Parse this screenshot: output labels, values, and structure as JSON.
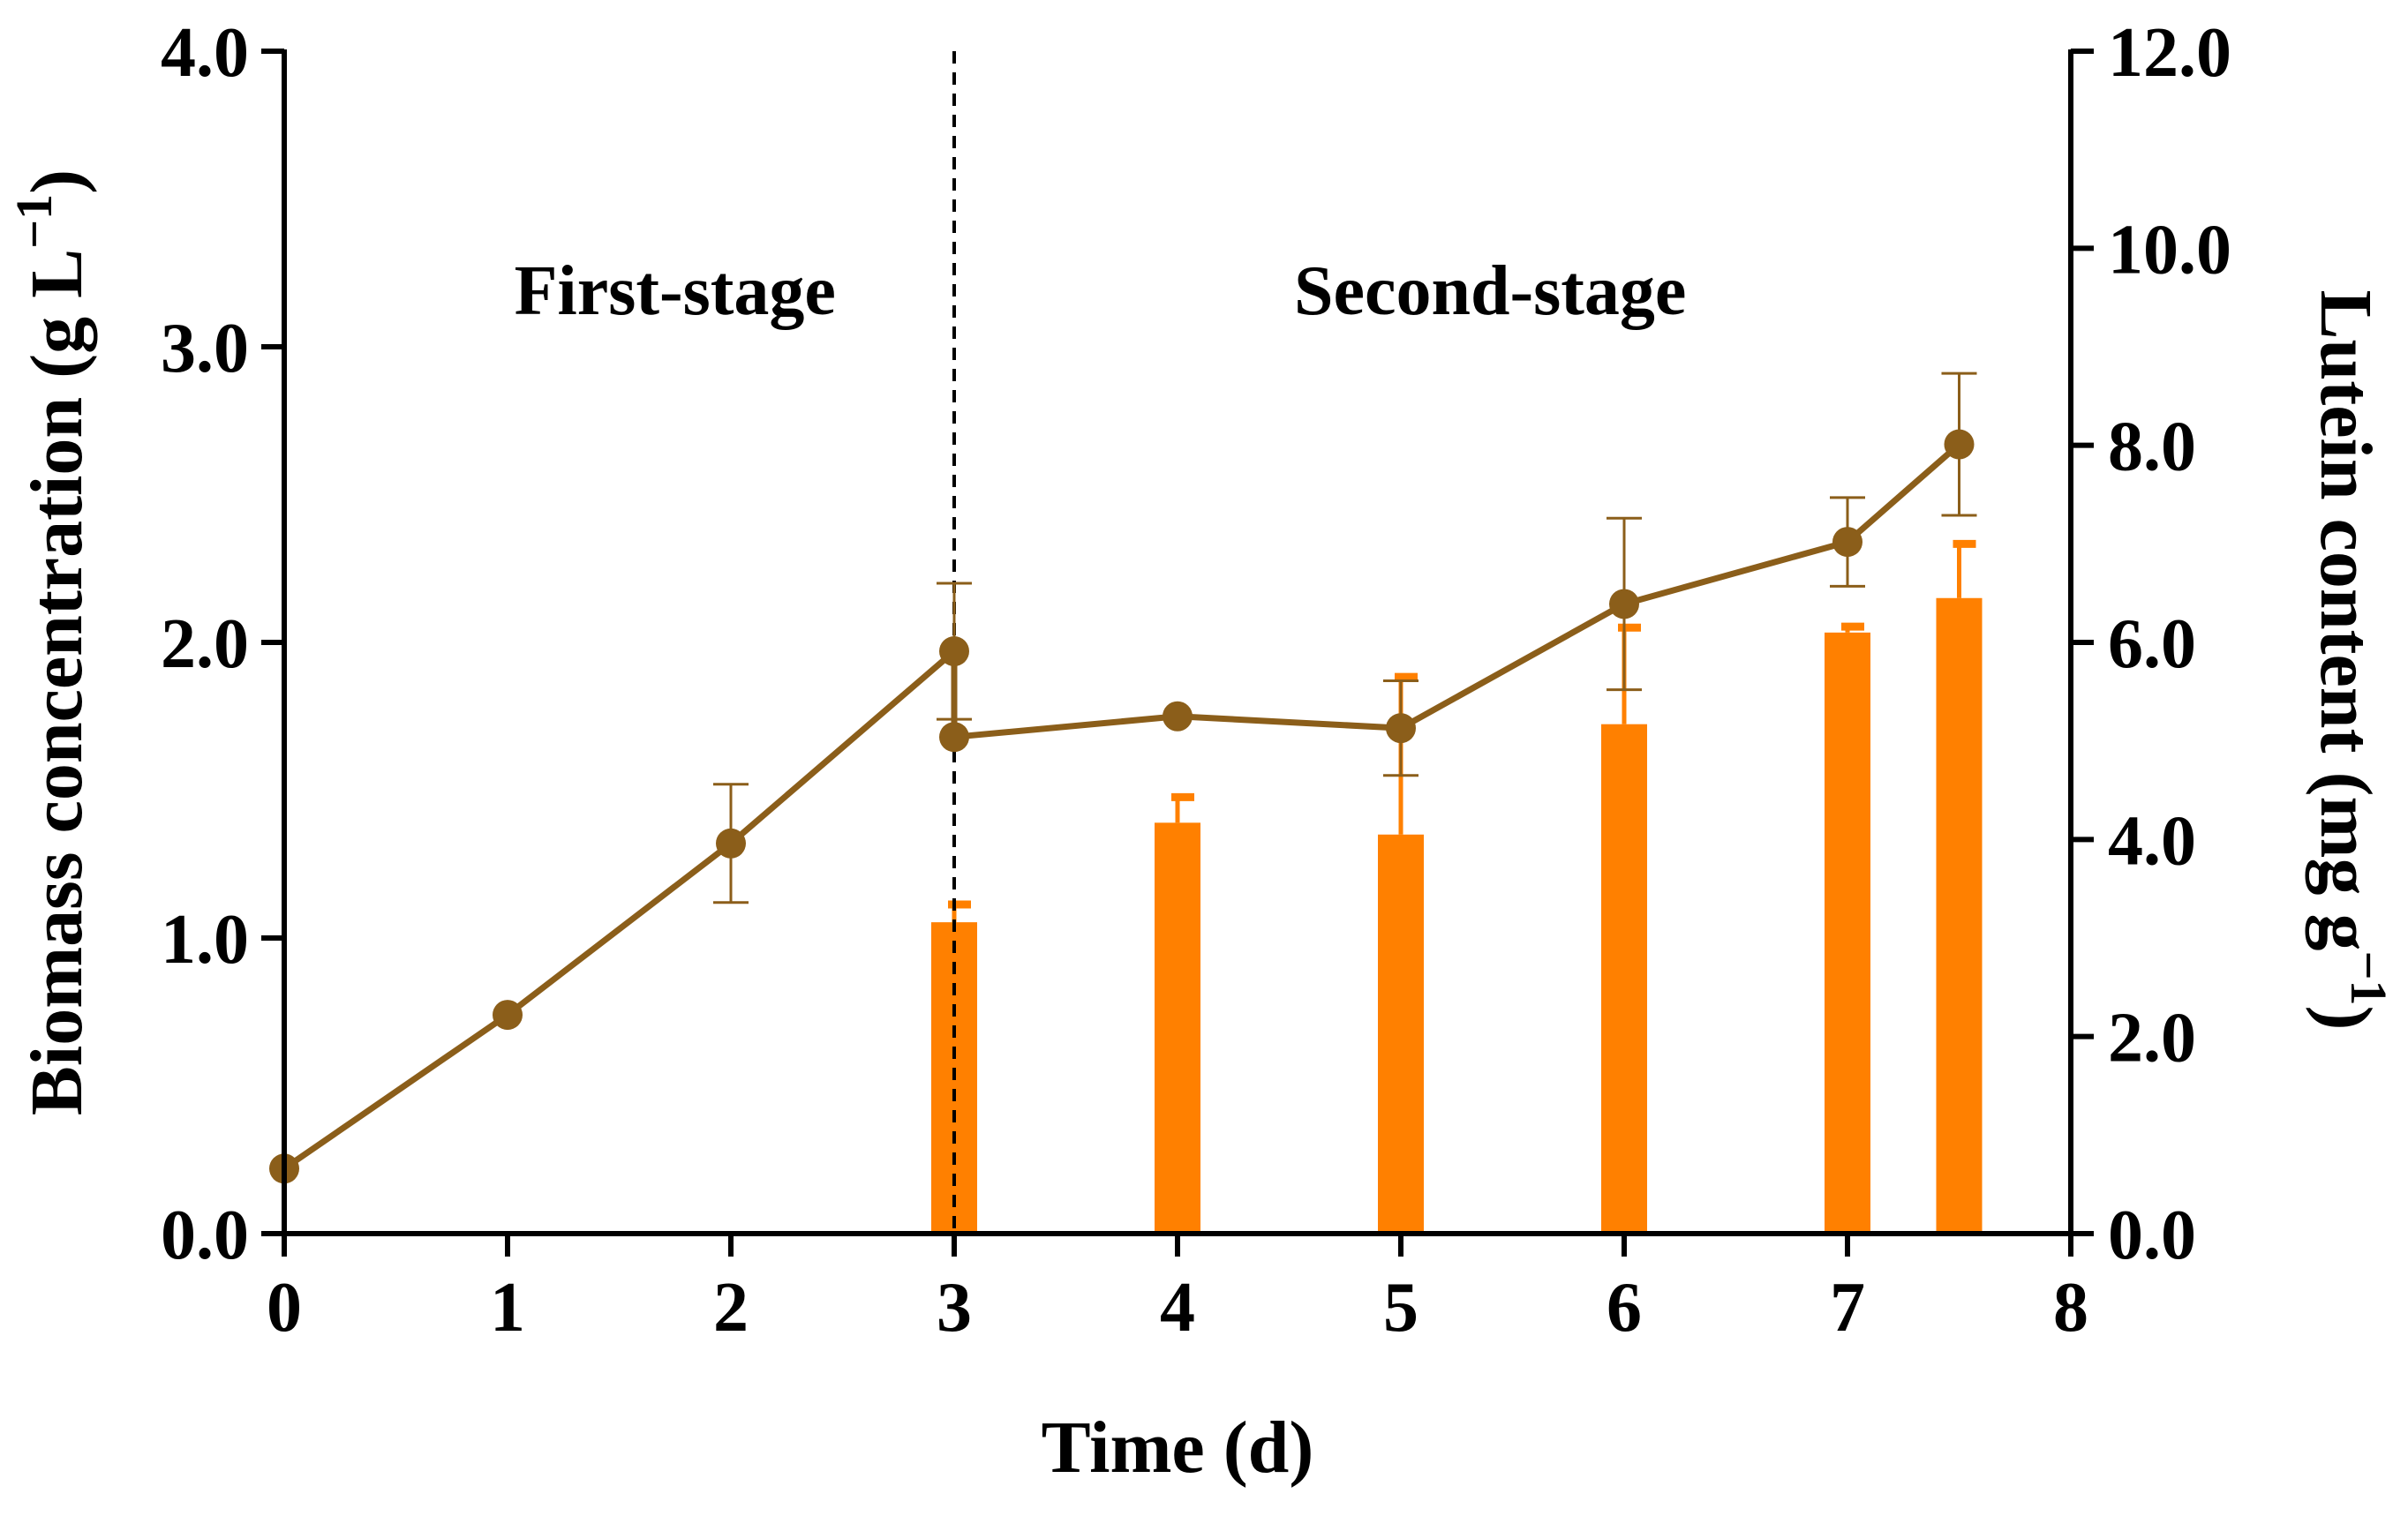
{
  "chart_data": {
    "type": "bar+line (dual axis)",
    "title": "",
    "xlabel": "Time (d)",
    "ylabel_left": "Biomass concentration (g L",
    "ylabel_left_sup": "−1",
    "ylabel_left_close": ")",
    "ylabel_right": "Lutein content (mg g",
    "ylabel_right_sup": "−1",
    "ylabel_right_close": ")",
    "xlim": [
      0,
      8
    ],
    "ylim_left": [
      0,
      4
    ],
    "ylim_right": [
      0,
      12
    ],
    "x_ticks": [
      0,
      1,
      2,
      3,
      4,
      5,
      6,
      7,
      8
    ],
    "x_tick_labels": [
      "0",
      "1",
      "2",
      "3",
      "4",
      "5",
      "6",
      "7",
      "8"
    ],
    "y_left_ticks": [
      0,
      1,
      2,
      3,
      4
    ],
    "y_left_tick_labels": [
      "0.0",
      "1.0",
      "2.0",
      "3.0",
      "4.0"
    ],
    "y_right_ticks": [
      0,
      2,
      4,
      6,
      8,
      10,
      12
    ],
    "y_right_tick_labels": [
      "0.0",
      "2.0",
      "4.0",
      "6.0",
      "8.0",
      "10.0",
      "12.0"
    ],
    "stage_divider_x": 3,
    "annotations": [
      {
        "text": "First-stage",
        "x": 1.75,
        "y": 3.2
      },
      {
        "text": "Second-stage",
        "x": 5.4,
        "y": 3.2
      }
    ],
    "series": [
      {
        "name": "Biomass concentration",
        "kind": "line",
        "axis": "left",
        "color": "#8B5E1A",
        "x": [
          0,
          1,
          2,
          3,
          3,
          4,
          5,
          6,
          7,
          7.5
        ],
        "y": [
          0.22,
          0.74,
          1.32,
          1.97,
          1.68,
          1.75,
          1.71,
          2.13,
          2.34,
          2.67
        ],
        "error": [
          0,
          0,
          0.2,
          0.23,
          0,
          0,
          0.16,
          0.29,
          0.15,
          0.24
        ]
      },
      {
        "name": "Lutein content",
        "kind": "bar",
        "axis": "right",
        "color": "#FF8000",
        "x": [
          3,
          4,
          5,
          6,
          7,
          7.5
        ],
        "y": [
          3.16,
          4.17,
          4.05,
          5.17,
          6.1,
          6.45
        ],
        "error": [
          0.18,
          0.26,
          1.6,
          0.98,
          0.06,
          0.55
        ]
      }
    ]
  }
}
